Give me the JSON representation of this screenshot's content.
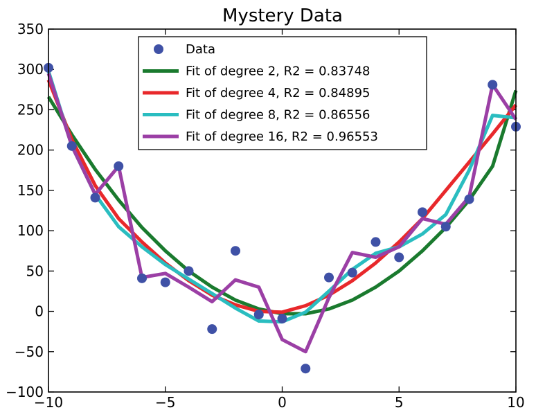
{
  "chart_data": {
    "type": "scatter",
    "title": "Mystery Data",
    "xlabel": "",
    "ylabel": "",
    "xlim": [
      -10,
      10
    ],
    "ylim": [
      -100,
      350
    ],
    "grid": false,
    "legend_position": "top-center",
    "x_ticks": [
      -10,
      -5,
      0,
      5,
      10
    ],
    "x_tick_labels": [
      "−10",
      "−5",
      "0",
      "5",
      "10"
    ],
    "y_ticks": [
      -100,
      -50,
      0,
      50,
      100,
      150,
      200,
      250,
      300,
      350
    ],
    "y_tick_labels": [
      "−100",
      "−50",
      "0",
      "50",
      "100",
      "150",
      "200",
      "250",
      "300",
      "350"
    ],
    "points": {
      "name": "Data",
      "color": "#3f51a6",
      "x": [
        -10,
        -9,
        -8,
        -7,
        -6,
        -5,
        -4,
        -3,
        -2,
        -1,
        0,
        1,
        2,
        3,
        4,
        5,
        6,
        7,
        8,
        9,
        10
      ],
      "y": [
        302,
        205,
        141,
        180,
        41,
        36,
        50,
        -22,
        75,
        -4,
        -9,
        -71,
        42,
        48,
        86,
        67,
        123,
        105,
        139,
        281,
        229
      ]
    },
    "series": [
      {
        "name": "Fit of degree 2, R2 = 0.83748",
        "color": "#1a7a2e",
        "x": [
          -10,
          -9,
          -8,
          -7,
          -6,
          -5,
          -4,
          -3,
          -2,
          -1,
          0,
          1,
          2,
          3,
          4,
          5,
          6,
          7,
          8,
          9,
          10
        ],
        "y": [
          266,
          219,
          176,
          138,
          104,
          75,
          50,
          30,
          14,
          3,
          -3,
          -3,
          3,
          14,
          30,
          50,
          75,
          104,
          138,
          180,
          274
        ]
      },
      {
        "name": "Fit of degree 4, R2 = 0.84895",
        "color": "#e8282b",
        "x": [
          -10,
          -9,
          -8,
          -7,
          -6,
          -5,
          -4,
          -3,
          -2,
          -1,
          0,
          1,
          2,
          3,
          4,
          5,
          6,
          7,
          8,
          9,
          10
        ],
        "y": [
          287,
          213,
          156,
          115,
          86,
          60,
          38,
          20,
          8,
          0,
          -1,
          7,
          20,
          38,
          60,
          86,
          115,
          150,
          185,
          220,
          256
        ]
      },
      {
        "name": "Fit of degree 8, R2 = 0.86556",
        "color": "#2abdc0",
        "x": [
          -10,
          -9,
          -8,
          -7,
          -6,
          -5,
          -4,
          -3,
          -2,
          -1,
          0,
          1,
          2,
          3,
          4,
          5,
          6,
          7,
          8,
          9,
          10
        ],
        "y": [
          298,
          205,
          145,
          105,
          80,
          58,
          40,
          22,
          4,
          -12,
          -13,
          -1,
          25,
          52,
          72,
          80,
          96,
          120,
          175,
          243,
          240
        ]
      },
      {
        "name": "Fit of degree 16, R2 = 0.96553",
        "color": "#9b3fa5",
        "x": [
          -10,
          -9,
          -8,
          -7,
          -6,
          -5,
          -4,
          -3,
          -2,
          -1,
          0,
          1,
          2,
          3,
          4,
          5,
          6,
          7,
          8,
          9,
          10
        ],
        "y": [
          295,
          205,
          145,
          180,
          42,
          47,
          30,
          12,
          39,
          30,
          -35,
          -50,
          17,
          73,
          67,
          80,
          115,
          108,
          142,
          281,
          238
        ]
      }
    ]
  }
}
